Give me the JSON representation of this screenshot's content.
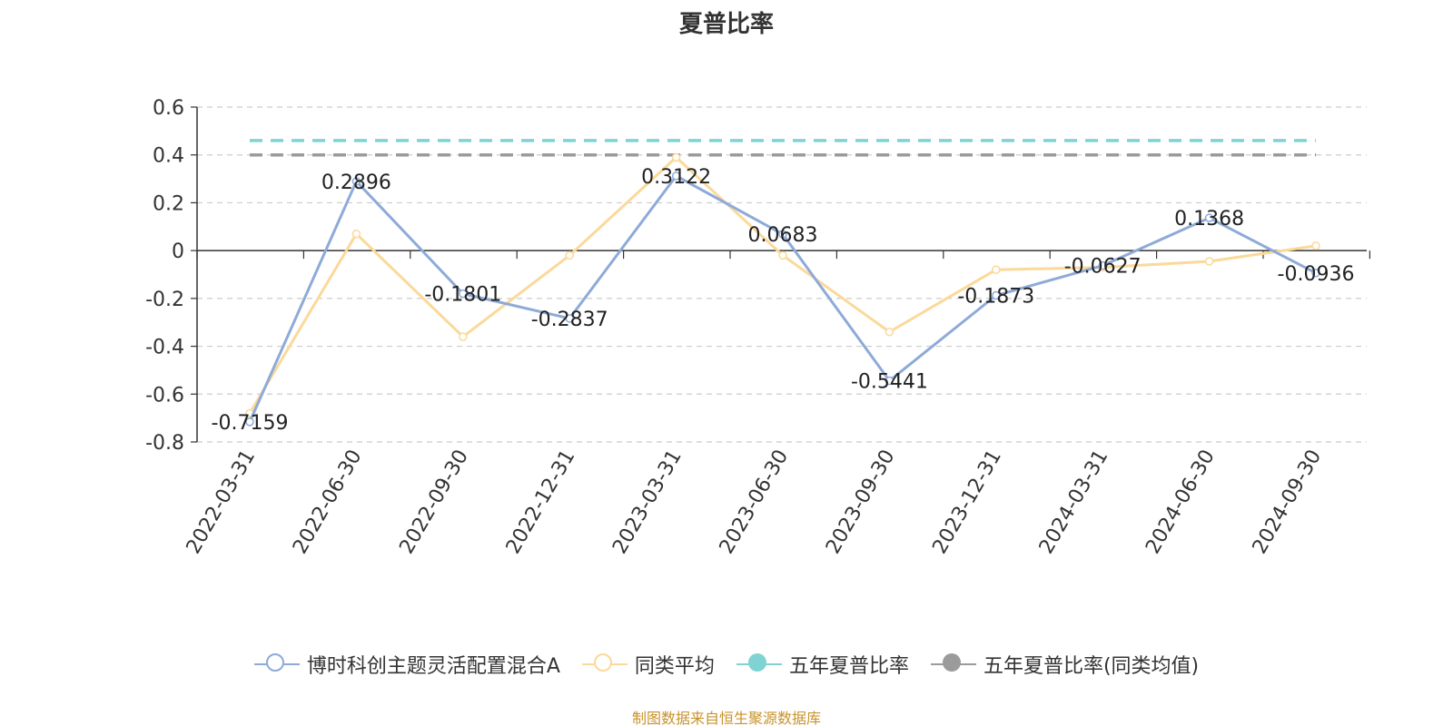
{
  "source_note": "制图数据来自恒生聚源数据库",
  "colors": {
    "fund": "#8eaad8",
    "peer": "#fbd99a",
    "five_year": "#7fd3d3",
    "five_year_peer": "#9b9b9b"
  },
  "chart_data": {
    "type": "line",
    "title": "夏普比率",
    "categories": [
      "2022-03-31",
      "2022-06-30",
      "2022-09-30",
      "2022-12-31",
      "2023-03-31",
      "2023-06-30",
      "2023-09-30",
      "2023-12-31",
      "2024-03-31",
      "2024-06-30",
      "2024-09-30"
    ],
    "ylim": [
      -0.8,
      0.6
    ],
    "yticks": [
      "0.6",
      "0.4",
      "0.2",
      "0",
      "-0.2",
      "-0.4",
      "-0.6",
      "-0.8"
    ],
    "grid": true,
    "legend_position": "bottom",
    "series": [
      {
        "name": "博时科创主题灵活配置混合A",
        "values": [
          -0.7159,
          0.2896,
          -0.1801,
          -0.2837,
          0.3122,
          0.0683,
          -0.5441,
          -0.1873,
          -0.0627,
          0.1368,
          -0.0936
        ],
        "labels": [
          "-0.7159",
          "0.2896",
          "-0.1801",
          "-0.2837",
          "0.3122",
          "0.0683",
          "-0.5441",
          "-0.1873",
          "-0.0627",
          "0.1368",
          "-0.0936"
        ]
      },
      {
        "name": "同类平均",
        "values": [
          -0.68,
          0.07,
          -0.36,
          -0.02,
          0.39,
          -0.02,
          -0.34,
          -0.08,
          -0.07,
          -0.045,
          0.02
        ]
      },
      {
        "name": "五年夏普比率",
        "values": [
          0.46,
          0.46,
          0.46,
          0.46,
          0.46,
          0.46,
          0.46,
          0.46,
          0.46,
          0.46,
          0.46
        ]
      },
      {
        "name": "五年夏普比率(同类均值)",
        "values": [
          0.4,
          0.4,
          0.4,
          0.4,
          0.4,
          0.4,
          0.4,
          0.4,
          0.4,
          0.4,
          0.4
        ]
      }
    ]
  }
}
